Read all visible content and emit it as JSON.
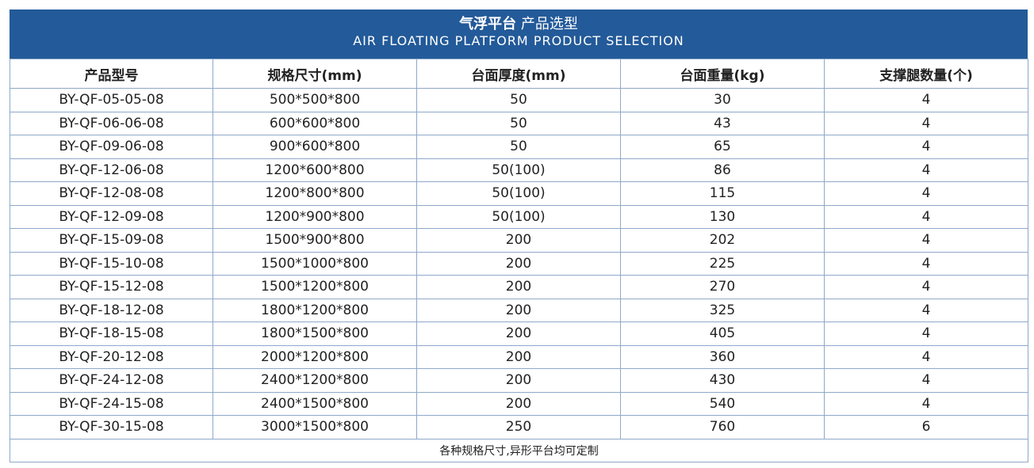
{
  "banner": {
    "title_bold": "气浮平台",
    "title_rest": "产品选型",
    "subtitle": "AIR FLOATING PLATFORM PRODUCT SELECTION"
  },
  "table": {
    "headers": [
      "产品型号",
      "规格尺寸(mm)",
      "台面厚度(mm)",
      "台面重量(kg)",
      "支撑腿数量(个)"
    ],
    "rows": [
      [
        "BY-QF-05-05-08",
        "500*500*800",
        "50",
        "30",
        "4"
      ],
      [
        "BY-QF-06-06-08",
        "600*600*800",
        "50",
        "43",
        "4"
      ],
      [
        "BY-QF-09-06-08",
        "900*600*800",
        "50",
        "65",
        "4"
      ],
      [
        "BY-QF-12-06-08",
        "1200*600*800",
        "50(100)",
        "86",
        "4"
      ],
      [
        "BY-QF-12-08-08",
        "1200*800*800",
        "50(100)",
        "115",
        "4"
      ],
      [
        "BY-QF-12-09-08",
        "1200*900*800",
        "50(100)",
        "130",
        "4"
      ],
      [
        "BY-QF-15-09-08",
        "1500*900*800",
        "200",
        "202",
        "4"
      ],
      [
        "BY-QF-15-10-08",
        "1500*1000*800",
        "200",
        "225",
        "4"
      ],
      [
        "BY-QF-15-12-08",
        "1500*1200*800",
        "200",
        "270",
        "4"
      ],
      [
        "BY-QF-18-12-08",
        "1800*1200*800",
        "200",
        "325",
        "4"
      ],
      [
        "BY-QF-18-15-08",
        "1800*1500*800",
        "200",
        "405",
        "4"
      ],
      [
        "BY-QF-20-12-08",
        "2000*1200*800",
        "200",
        "360",
        "4"
      ],
      [
        "BY-QF-24-12-08",
        "2400*1200*800",
        "200",
        "430",
        "4"
      ],
      [
        "BY-QF-24-15-08",
        "2400*1500*800",
        "200",
        "540",
        "4"
      ],
      [
        "BY-QF-30-15-08",
        "3000*1500*800",
        "250",
        "760",
        "6"
      ]
    ],
    "note": "各种规格尺寸,异形平台均可定制"
  },
  "colors": {
    "banner": "#235a99",
    "border": "#8fa8c9"
  }
}
